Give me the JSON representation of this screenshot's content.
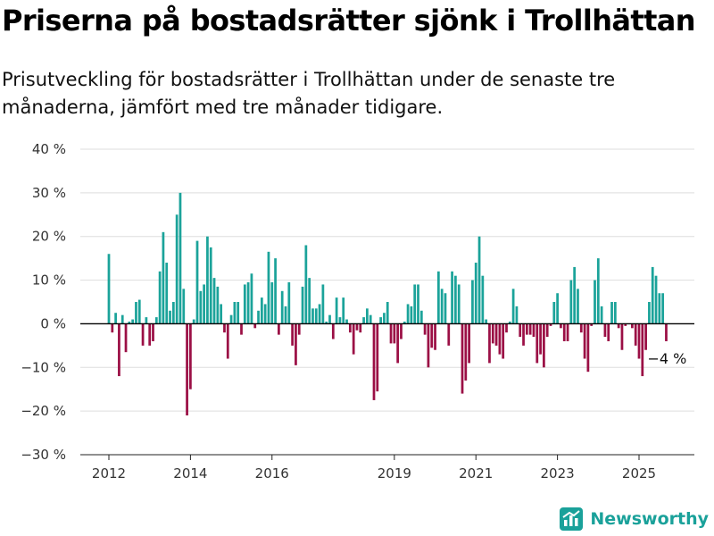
{
  "title": "Priserna på bostadsrätter sjönk i Trollhättan",
  "subtitle": "Prisutveckling för bostadsrätter i Trollhättan under de senaste tre månaderna, jämfört med tre månader tidigare.",
  "brand": {
    "name": "Newsworthy",
    "icon": "chart-logo-icon",
    "color": "#1aa19a"
  },
  "colors": {
    "positive": "#1ba39a",
    "negative": "#9b0f45",
    "gridline": "#dddddd",
    "zero_line": "#000000"
  },
  "chart_data": {
    "type": "bar",
    "title": "Priserna på bostadsrätter sjönk i Trollhättan",
    "subtitle": "Prisutveckling för bostadsrätter i Trollhättan under de senaste tre månaderna, jämfört med tre månader tidigare.",
    "xlabel": "",
    "ylabel": "",
    "ylim": [
      -30,
      40
    ],
    "yticks": [
      40,
      30,
      20,
      10,
      0,
      -10,
      -20,
      -30
    ],
    "ytick_labels": [
      "40 %",
      "30 %",
      "20 %",
      "10 %",
      "0 %",
      "−10 %",
      "−20 %",
      "−30 %"
    ],
    "xticks": [
      2012,
      2014,
      2016,
      2019,
      2021,
      2023,
      2025
    ],
    "xtick_labels": [
      "2012",
      "2014",
      "2016",
      "2019",
      "2021",
      "2023",
      "2025"
    ],
    "x_start": "2012-01",
    "frequency": "monthly",
    "grid": true,
    "last_value_label": "−4 %",
    "values": [
      16,
      -2,
      2.5,
      -12,
      2,
      -6.5,
      0.5,
      1,
      5,
      5.5,
      -5,
      1.5,
      -5,
      -4,
      1.5,
      12,
      21,
      14,
      3,
      5,
      25,
      30,
      8,
      -21,
      -15,
      1,
      19,
      7.5,
      9,
      20,
      17.5,
      10.5,
      8.5,
      4.5,
      -2,
      -8,
      2,
      5,
      5,
      -2.5,
      9,
      9.5,
      11.5,
      -1,
      3,
      6,
      4.5,
      16.5,
      9.5,
      15,
      -2.5,
      7.5,
      4,
      9.5,
      -5,
      -9.5,
      -2.5,
      8.5,
      18,
      10.5,
      3.5,
      3.5,
      4.5,
      9,
      0.5,
      2,
      -3.5,
      6,
      1.5,
      6,
      1,
      -2,
      -7,
      -1.5,
      -2,
      1.5,
      3.5,
      2,
      -17.5,
      -15.5,
      1.5,
      2.5,
      5,
      -4.5,
      -4.5,
      -9,
      -3.5,
      0.5,
      4.5,
      4,
      9,
      9,
      3,
      -2.5,
      -10,
      -5.5,
      -6,
      12,
      8,
      7,
      -5,
      12,
      11,
      9,
      -16,
      -13,
      -9,
      10,
      14,
      20,
      11,
      1,
      -9,
      -4.5,
      -5,
      -7,
      -8,
      -2,
      0.5,
      8,
      4,
      -3,
      -5,
      -2.5,
      -2.5,
      -3,
      -9,
      -7,
      -10,
      -3,
      -0.5,
      5,
      7,
      -1,
      -4,
      -4,
      10,
      13,
      8,
      -2,
      -8,
      -11,
      -0.5,
      10,
      15,
      4,
      -3,
      -4,
      5,
      5,
      -1,
      -6,
      -0.5,
      0,
      -1,
      -5,
      -8,
      -12,
      -6,
      5,
      13,
      11,
      7,
      7,
      -4
    ]
  }
}
